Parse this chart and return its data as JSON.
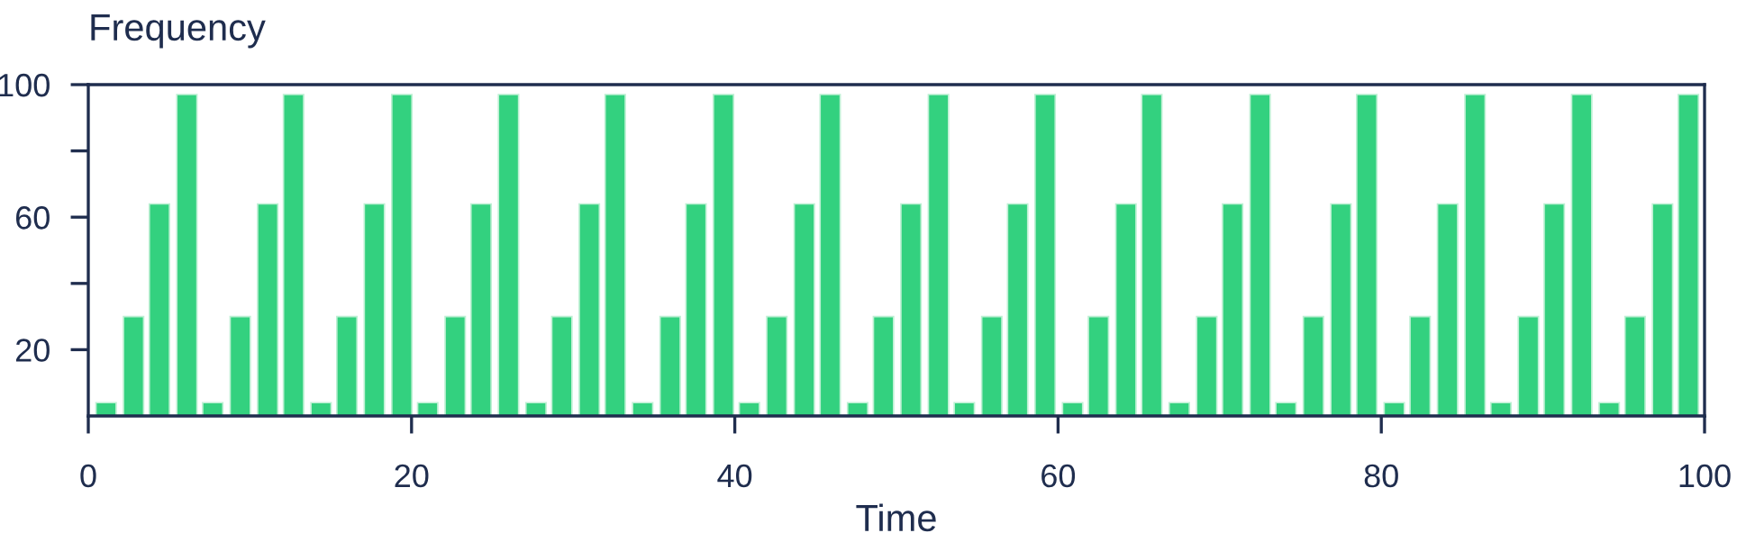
{
  "chart_data": {
    "type": "bar",
    "ylabel": "Frequency",
    "xlabel": "Time",
    "x": [
      1.1,
      2.8,
      4.4,
      6.1,
      7.7,
      9.4,
      11.1,
      12.7,
      14.4,
      16.0,
      17.7,
      19.4,
      21.0,
      22.7,
      24.3,
      26.0,
      27.7,
      29.3,
      31.0,
      32.6,
      34.3,
      36.0,
      37.6,
      39.3,
      40.9,
      42.6,
      44.3,
      45.9,
      47.6,
      49.2,
      50.9,
      52.6,
      54.2,
      55.9,
      57.5,
      59.2,
      60.9,
      62.5,
      64.2,
      65.8,
      67.5,
      69.2,
      70.8,
      72.5,
      74.1,
      75.8,
      77.5,
      79.1,
      80.8,
      82.4,
      84.1,
      85.8,
      87.4,
      89.1,
      90.7,
      92.4,
      94.1,
      95.7,
      97.4,
      99.0
    ],
    "values": [
      4,
      30,
      64,
      97,
      4,
      30,
      64,
      97,
      4,
      30,
      64,
      97,
      4,
      30,
      64,
      97,
      4,
      30,
      64,
      97,
      4,
      30,
      64,
      97,
      4,
      30,
      64,
      97,
      4,
      30,
      64,
      97,
      4,
      30,
      64,
      97,
      4,
      30,
      64,
      97,
      4,
      30,
      64,
      97,
      4,
      30,
      64,
      97,
      4,
      30,
      64,
      97,
      4,
      30,
      64,
      97,
      4,
      30,
      64,
      97
    ],
    "color": "#33d17f",
    "xlim": [
      0,
      100
    ],
    "xticks": [
      0,
      20,
      40,
      60,
      80,
      100
    ],
    "ylim": [
      0,
      100
    ],
    "yticks": [
      {
        "value": 20,
        "label": "20"
      },
      {
        "value": 40,
        "label": null
      },
      {
        "value": 60,
        "label": "60"
      },
      {
        "value": 80,
        "label": null
      },
      {
        "value": 100,
        "label": "100"
      }
    ],
    "grid": false,
    "legend": false
  }
}
